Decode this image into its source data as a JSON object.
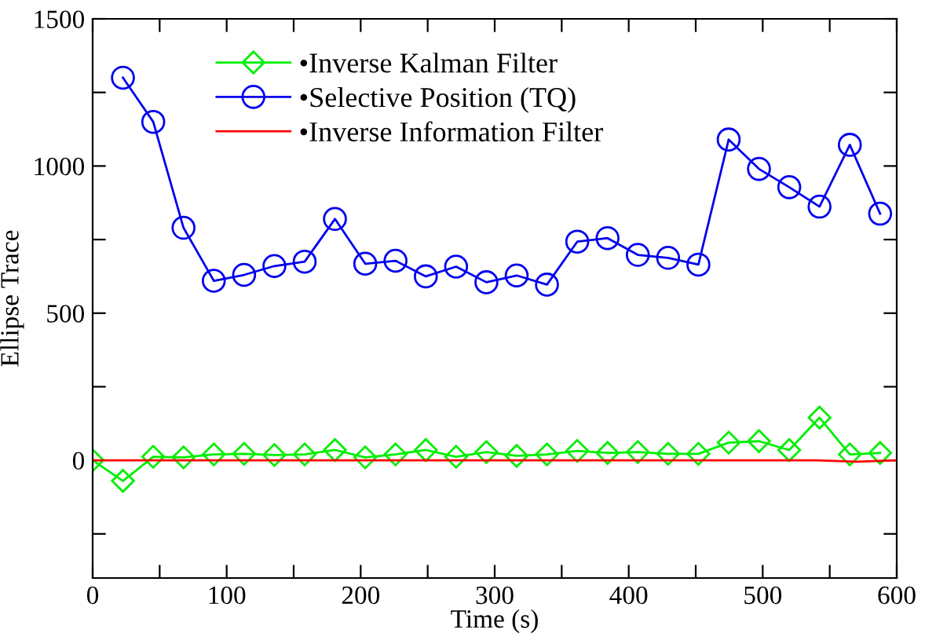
{
  "chart_data": {
    "type": "line",
    "xlabel": "Time (s)",
    "ylabel": "Ellipse Trace",
    "xlim": [
      0,
      600
    ],
    "ylim": [
      -400,
      1500
    ],
    "xticks": [
      0,
      {
        "value": 50,
        "label": null
      },
      100,
      {
        "value": 150,
        "label": null
      },
      200,
      {
        "value": 250,
        "label": null
      },
      300,
      {
        "value": 350,
        "label": null
      },
      400,
      {
        "value": 450,
        "label": null
      },
      500,
      {
        "value": 550,
        "label": null
      },
      600
    ],
    "yticks": [
      {
        "value": -250,
        "label": null
      },
      0,
      {
        "value": 250,
        "label": null
      },
      500,
      {
        "value": 750,
        "label": null
      },
      1000,
      {
        "value": 1250,
        "label": null
      },
      1500
    ],
    "grid": false,
    "legend": "top left",
    "series": [
      {
        "name": "•Inverse Kalman Filter",
        "color": "#00ee00",
        "marker": "diamond",
        "x": [
          0,
          22.6,
          45.2,
          67.8,
          90.4,
          113,
          135.6,
          158.2,
          180.8,
          203.4,
          226,
          248.6,
          271.2,
          293.8,
          316.4,
          339,
          361.6,
          384.2,
          406.8,
          429.4,
          452,
          474.6,
          497.2,
          519.8,
          542.4,
          565,
          587.6
        ],
        "values": [
          0,
          -70,
          12,
          10,
          20,
          22,
          18,
          20,
          35,
          10,
          20,
          35,
          12,
          28,
          15,
          20,
          32,
          25,
          28,
          22,
          22,
          60,
          65,
          35,
          145,
          20,
          25
        ]
      },
      {
        "name": "•Selective Position (TQ)",
        "color": "#0000ee",
        "marker": "circle",
        "x": [
          22.6,
          45.2,
          67.8,
          90.4,
          113,
          135.6,
          158.2,
          180.8,
          203.4,
          226,
          248.6,
          271.2,
          293.8,
          316.4,
          339,
          361.6,
          384.2,
          406.8,
          429.4,
          452,
          474.6,
          497.2,
          519.8,
          542.4,
          565,
          587.6
        ],
        "values": [
          1300,
          1150,
          790,
          610,
          630,
          660,
          675,
          820,
          668,
          678,
          625,
          658,
          605,
          628,
          597,
          743,
          755,
          698,
          688,
          665,
          1090,
          990,
          928,
          862,
          1072,
          838
        ]
      },
      {
        "name": "•Inverse Information Filter",
        "color": "#ff0000",
        "marker": "none",
        "x": [
          0,
          540,
          570,
          600
        ],
        "values": [
          0,
          0,
          -5,
          0
        ]
      }
    ]
  }
}
